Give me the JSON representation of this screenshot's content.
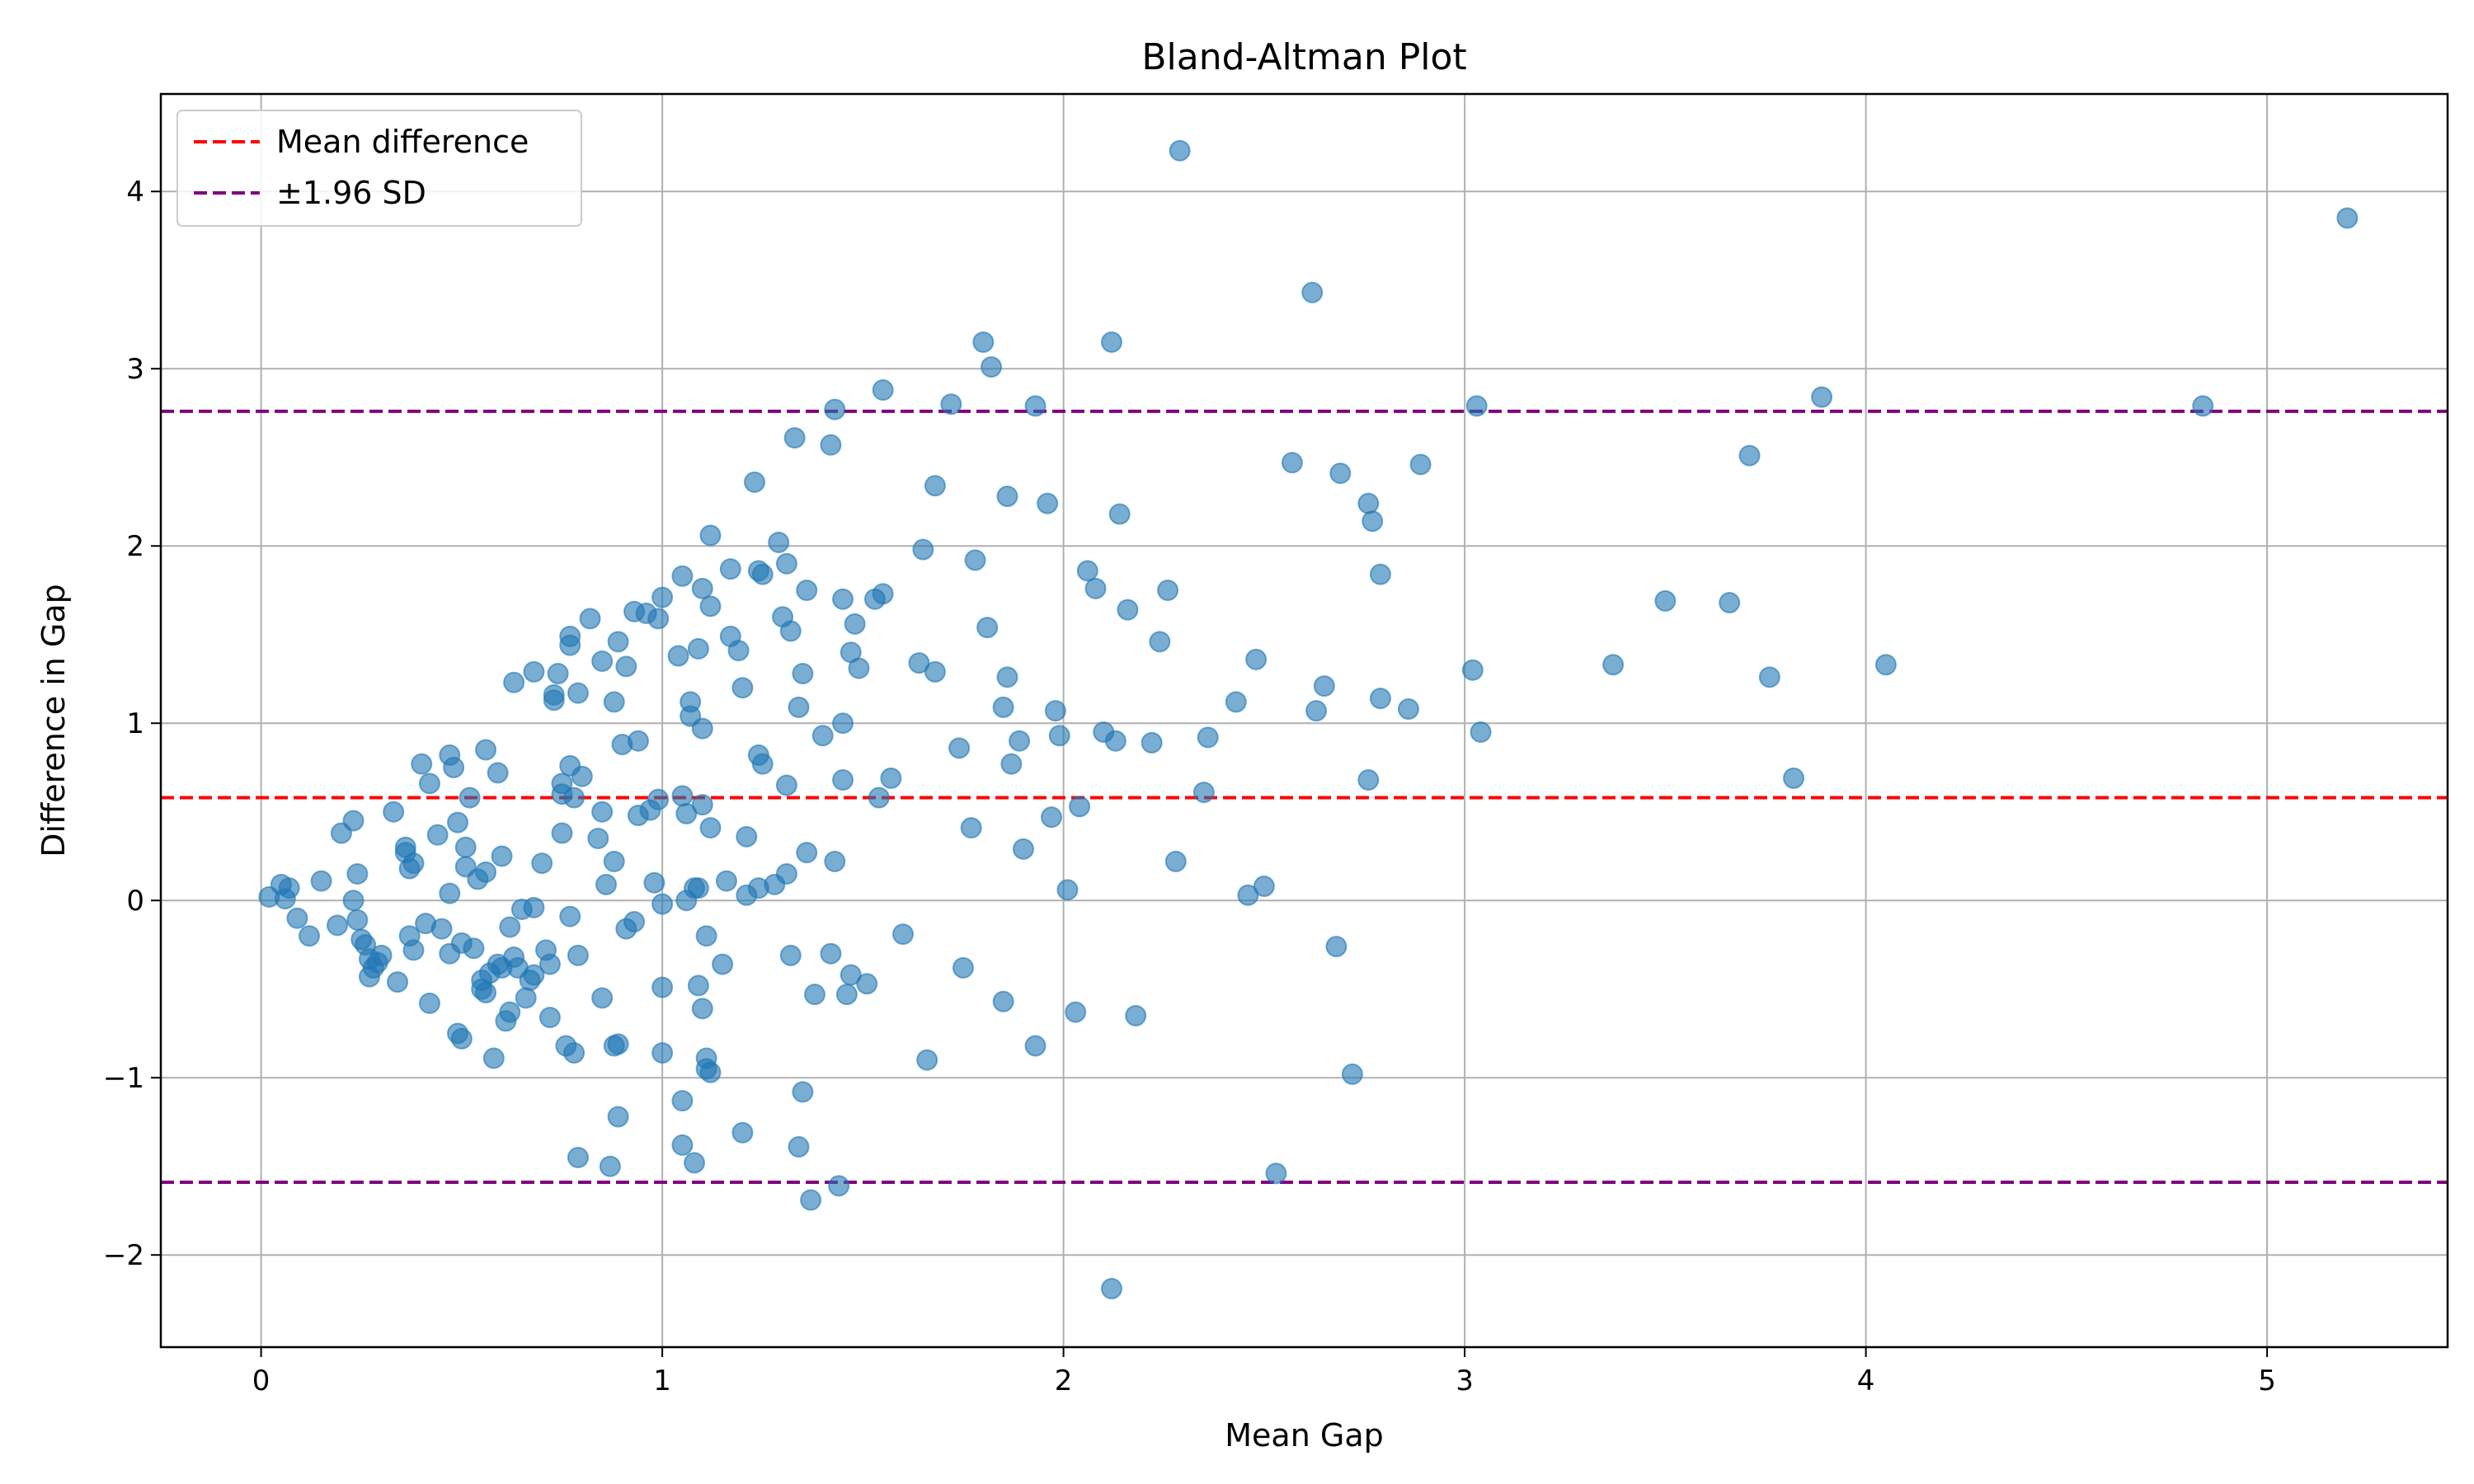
{
  "chart_data": {
    "type": "scatter",
    "title": "Bland-Altman Plot",
    "xlabel": "Mean Gap",
    "ylabel": "Difference in Gap",
    "xlim": [
      -0.25,
      5.45
    ],
    "ylim": [
      -2.52,
      4.55
    ],
    "xticks": [
      0,
      1,
      2,
      3,
      4,
      5
    ],
    "xtick_labels": [
      "0",
      "1",
      "2",
      "3",
      "4",
      "5"
    ],
    "yticks": [
      -2,
      -1,
      0,
      1,
      2,
      3,
      4
    ],
    "ytick_labels": [
      "−2",
      "−1",
      "0",
      "1",
      "2",
      "3",
      "4"
    ],
    "grid": true,
    "legend_position": "top-left",
    "colors": {
      "points": "#1f77b4",
      "mean_line": "#ff0000",
      "sd_lines": "#800080",
      "grid": "#b0b0b0"
    },
    "lines": [
      {
        "name": "Mean difference",
        "y": 0.58,
        "color": "#ff0000",
        "style": "dashed"
      },
      {
        "name": "±1.96 SD",
        "y": 2.76,
        "color": "#800080",
        "style": "dashed"
      },
      {
        "y": -1.59,
        "color": "#800080",
        "style": "dashed"
      }
    ],
    "legend": [
      {
        "label": "Mean difference",
        "color": "#ff0000"
      },
      {
        "label": "±1.96 SD",
        "color": "#800080"
      }
    ],
    "series": [
      {
        "points": [
          [
            0.02,
            0.02
          ],
          [
            0.05,
            0.09
          ],
          [
            0.06,
            0.01
          ],
          [
            0.07,
            0.07
          ],
          [
            0.09,
            -0.1
          ],
          [
            0.12,
            -0.2
          ],
          [
            0.15,
            0.11
          ],
          [
            0.19,
            -0.14
          ],
          [
            0.2,
            0.38
          ],
          [
            0.23,
            0.45
          ],
          [
            0.23,
            0.0
          ],
          [
            0.24,
            0.15
          ],
          [
            0.24,
            -0.11
          ],
          [
            0.25,
            -0.22
          ],
          [
            0.26,
            -0.25
          ],
          [
            0.27,
            -0.33
          ],
          [
            0.27,
            -0.43
          ],
          [
            0.28,
            -0.38
          ],
          [
            0.29,
            -0.35
          ],
          [
            0.3,
            -0.31
          ],
          [
            0.33,
            0.5
          ],
          [
            0.34,
            -0.46
          ],
          [
            0.36,
            0.27
          ],
          [
            0.36,
            0.3
          ],
          [
            0.37,
            -0.2
          ],
          [
            0.37,
            0.18
          ],
          [
            0.38,
            0.21
          ],
          [
            0.38,
            -0.28
          ],
          [
            0.4,
            0.77
          ],
          [
            0.41,
            -0.13
          ],
          [
            0.42,
            0.66
          ],
          [
            0.42,
            -0.58
          ],
          [
            0.44,
            0.37
          ],
          [
            0.45,
            -0.16
          ],
          [
            0.47,
            0.82
          ],
          [
            0.47,
            0.04
          ],
          [
            0.47,
            -0.3
          ],
          [
            0.48,
            0.75
          ],
          [
            0.49,
            -0.75
          ],
          [
            0.49,
            0.44
          ],
          [
            0.5,
            -0.24
          ],
          [
            0.5,
            -0.78
          ],
          [
            0.51,
            0.3
          ],
          [
            0.51,
            0.19
          ],
          [
            0.52,
            0.58
          ],
          [
            0.53,
            -0.27
          ],
          [
            0.54,
            0.12
          ],
          [
            0.55,
            -0.45
          ],
          [
            0.55,
            -0.5
          ],
          [
            0.56,
            0.85
          ],
          [
            0.56,
            0.16
          ],
          [
            0.56,
            -0.52
          ],
          [
            0.57,
            -0.41
          ],
          [
            0.58,
            -0.89
          ],
          [
            0.59,
            0.72
          ],
          [
            0.59,
            -0.36
          ],
          [
            0.6,
            0.25
          ],
          [
            0.6,
            -0.38
          ],
          [
            0.61,
            -0.68
          ],
          [
            0.62,
            -0.15
          ],
          [
            0.62,
            -0.63
          ],
          [
            0.63,
            1.23
          ],
          [
            0.63,
            -0.32
          ],
          [
            0.64,
            -0.38
          ],
          [
            0.65,
            -0.05
          ],
          [
            0.66,
            -0.55
          ],
          [
            0.67,
            -0.45
          ],
          [
            0.68,
            -0.04
          ],
          [
            0.68,
            1.29
          ],
          [
            0.68,
            -0.42
          ],
          [
            0.7,
            0.21
          ],
          [
            0.71,
            -0.28
          ],
          [
            0.72,
            -0.36
          ],
          [
            0.72,
            -0.66
          ],
          [
            0.73,
            1.16
          ],
          [
            0.73,
            1.13
          ],
          [
            0.74,
            1.28
          ],
          [
            0.75,
            0.38
          ],
          [
            0.75,
            0.66
          ],
          [
            0.75,
            0.6
          ],
          [
            0.76,
            -0.82
          ],
          [
            0.77,
            0.76
          ],
          [
            0.77,
            -0.09
          ],
          [
            0.77,
            1.49
          ],
          [
            0.77,
            1.44
          ],
          [
            0.78,
            -0.86
          ],
          [
            0.79,
            -1.45
          ],
          [
            0.78,
            0.58
          ],
          [
            0.79,
            -0.31
          ],
          [
            0.79,
            1.17
          ],
          [
            0.8,
            0.7
          ],
          [
            0.82,
            1.59
          ],
          [
            0.84,
            0.35
          ],
          [
            0.85,
            0.5
          ],
          [
            0.85,
            -0.55
          ],
          [
            0.85,
            1.35
          ],
          [
            0.86,
            0.09
          ],
          [
            0.87,
            -1.5
          ],
          [
            0.88,
            1.12
          ],
          [
            0.88,
            0.22
          ],
          [
            0.88,
            -0.82
          ],
          [
            0.89,
            1.46
          ],
          [
            0.89,
            -1.22
          ],
          [
            0.89,
            -0.81
          ],
          [
            0.9,
            0.88
          ],
          [
            0.91,
            -0.16
          ],
          [
            0.91,
            1.32
          ],
          [
            0.93,
            -0.12
          ],
          [
            0.93,
            1.63
          ],
          [
            0.94,
            0.9
          ],
          [
            0.94,
            0.48
          ],
          [
            0.96,
            1.62
          ],
          [
            0.97,
            0.51
          ],
          [
            0.98,
            0.1
          ],
          [
            0.99,
            0.57
          ],
          [
            0.99,
            1.59
          ],
          [
            1.0,
            1.71
          ],
          [
            1.0,
            -0.02
          ],
          [
            1.0,
            -0.86
          ],
          [
            1.0,
            -0.49
          ],
          [
            1.04,
            1.38
          ],
          [
            1.05,
            -1.38
          ],
          [
            1.05,
            -1.13
          ],
          [
            1.05,
            0.59
          ],
          [
            1.05,
            1.83
          ],
          [
            1.06,
            0.0
          ],
          [
            1.06,
            0.49
          ],
          [
            1.07,
            1.12
          ],
          [
            1.07,
            1.04
          ],
          [
            1.08,
            -1.48
          ],
          [
            1.08,
            0.07
          ],
          [
            1.09,
            0.07
          ],
          [
            1.09,
            -0.48
          ],
          [
            1.09,
            1.42
          ],
          [
            1.1,
            1.76
          ],
          [
            1.1,
            0.54
          ],
          [
            1.1,
            0.97
          ],
          [
            1.1,
            -0.61
          ],
          [
            1.11,
            -0.89
          ],
          [
            1.11,
            -0.95
          ],
          [
            1.11,
            -0.2
          ],
          [
            1.12,
            2.06
          ],
          [
            1.12,
            0.41
          ],
          [
            1.12,
            -0.97
          ],
          [
            1.12,
            1.66
          ],
          [
            1.15,
            -0.36
          ],
          [
            1.16,
            0.11
          ],
          [
            1.17,
            1.49
          ],
          [
            1.17,
            1.87
          ],
          [
            1.19,
            1.41
          ],
          [
            1.2,
            1.2
          ],
          [
            1.2,
            -1.31
          ],
          [
            1.21,
            0.03
          ],
          [
            1.21,
            0.36
          ],
          [
            1.23,
            2.36
          ],
          [
            1.24,
            1.86
          ],
          [
            1.24,
            0.82
          ],
          [
            1.25,
            0.77
          ],
          [
            1.25,
            1.84
          ],
          [
            1.24,
            0.07
          ],
          [
            1.28,
            0.09
          ],
          [
            1.29,
            2.02
          ],
          [
            1.3,
            1.6
          ],
          [
            1.31,
            1.9
          ],
          [
            1.31,
            0.65
          ],
          [
            1.31,
            0.15
          ],
          [
            1.32,
            1.52
          ],
          [
            1.32,
            -0.31
          ],
          [
            1.33,
            2.61
          ],
          [
            1.34,
            -1.39
          ],
          [
            1.34,
            1.09
          ],
          [
            1.35,
            1.28
          ],
          [
            1.35,
            -1.08
          ],
          [
            1.36,
            1.75
          ],
          [
            1.36,
            0.27
          ],
          [
            1.37,
            -1.69
          ],
          [
            1.38,
            -0.53
          ],
          [
            1.4,
            0.93
          ],
          [
            1.42,
            2.57
          ],
          [
            1.42,
            -0.3
          ],
          [
            1.43,
            2.77
          ],
          [
            1.43,
            0.22
          ],
          [
            1.44,
            -1.61
          ],
          [
            1.45,
            1.7
          ],
          [
            1.45,
            1.0
          ],
          [
            1.45,
            0.68
          ],
          [
            1.46,
            -0.53
          ],
          [
            1.47,
            1.4
          ],
          [
            1.47,
            -0.42
          ],
          [
            1.48,
            1.56
          ],
          [
            1.49,
            1.31
          ],
          [
            1.51,
            -0.47
          ],
          [
            1.53,
            1.7
          ],
          [
            1.54,
            0.58
          ],
          [
            1.55,
            2.88
          ],
          [
            1.55,
            1.73
          ],
          [
            1.57,
            0.69
          ],
          [
            1.6,
            -0.19
          ],
          [
            1.64,
            1.34
          ],
          [
            1.65,
            1.98
          ],
          [
            1.66,
            -0.9
          ],
          [
            1.68,
            2.34
          ],
          [
            1.68,
            1.29
          ],
          [
            1.72,
            2.8
          ],
          [
            1.74,
            0.86
          ],
          [
            1.75,
            -0.38
          ],
          [
            1.77,
            0.41
          ],
          [
            1.78,
            1.92
          ],
          [
            1.8,
            3.15
          ],
          [
            1.81,
            1.54
          ],
          [
            1.82,
            3.01
          ],
          [
            1.85,
            -0.57
          ],
          [
            1.85,
            1.09
          ],
          [
            1.86,
            1.26
          ],
          [
            1.86,
            2.28
          ],
          [
            1.87,
            0.77
          ],
          [
            1.89,
            0.9
          ],
          [
            1.9,
            0.29
          ],
          [
            1.93,
            2.79
          ],
          [
            1.93,
            -0.82
          ],
          [
            1.96,
            2.24
          ],
          [
            1.97,
            0.47
          ],
          [
            1.98,
            1.07
          ],
          [
            1.99,
            0.93
          ],
          [
            2.01,
            0.06
          ],
          [
            2.03,
            -0.63
          ],
          [
            2.04,
            0.53
          ],
          [
            2.06,
            1.86
          ],
          [
            2.08,
            1.76
          ],
          [
            2.1,
            0.95
          ],
          [
            2.12,
            3.15
          ],
          [
            2.12,
            -2.19
          ],
          [
            2.13,
            0.9
          ],
          [
            2.14,
            2.18
          ],
          [
            2.16,
            1.64
          ],
          [
            2.18,
            -0.65
          ],
          [
            2.22,
            0.89
          ],
          [
            2.24,
            1.46
          ],
          [
            2.26,
            1.75
          ],
          [
            2.28,
            0.22
          ],
          [
            2.29,
            4.23
          ],
          [
            2.35,
            0.61
          ],
          [
            2.36,
            0.92
          ],
          [
            2.43,
            1.12
          ],
          [
            2.46,
            0.03
          ],
          [
            2.48,
            1.36
          ],
          [
            2.5,
            0.08
          ],
          [
            2.53,
            -1.54
          ],
          [
            2.57,
            2.47
          ],
          [
            2.62,
            3.43
          ],
          [
            2.63,
            1.07
          ],
          [
            2.65,
            1.21
          ],
          [
            2.68,
            -0.26
          ],
          [
            2.69,
            2.41
          ],
          [
            2.72,
            -0.98
          ],
          [
            2.76,
            0.68
          ],
          [
            2.76,
            2.24
          ],
          [
            2.77,
            2.14
          ],
          [
            2.79,
            1.84
          ],
          [
            2.79,
            1.14
          ],
          [
            2.86,
            1.08
          ],
          [
            2.89,
            2.46
          ],
          [
            3.02,
            1.3
          ],
          [
            3.03,
            2.79
          ],
          [
            3.04,
            0.95
          ],
          [
            3.37,
            1.33
          ],
          [
            3.5,
            1.69
          ],
          [
            3.66,
            1.68
          ],
          [
            3.71,
            2.51
          ],
          [
            3.76,
            1.26
          ],
          [
            3.82,
            0.69
          ],
          [
            3.89,
            2.84
          ],
          [
            4.05,
            1.33
          ],
          [
            4.84,
            2.79
          ],
          [
            5.2,
            3.85
          ]
        ]
      }
    ]
  }
}
